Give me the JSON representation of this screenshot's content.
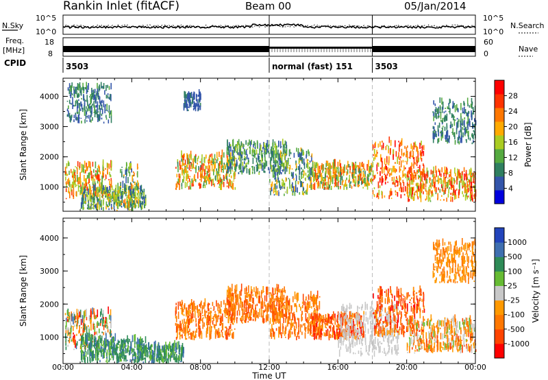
{
  "header": {
    "station": "Rankin Inlet (fitACF)",
    "beam": "Beam 00",
    "date": "05/Jan/2014"
  },
  "summary": {
    "nsky_label": "N.Sky",
    "nsky_ticks": [
      "10^5",
      "10^0"
    ],
    "nsearch_label": "N.Search",
    "freq_label_line1": "Freq.",
    "freq_label_line2": "[MHz]",
    "freq_ticks": [
      "18",
      "8"
    ],
    "nave_label": "Nave",
    "nave_ticks": [
      "60",
      "0"
    ],
    "cpid_label": "CPID",
    "cpid_segments": [
      {
        "text": "3503",
        "start_hour": 0,
        "end_hour": 12
      },
      {
        "text": "normal (fast) 151",
        "start_hour": 12,
        "end_hour": 18
      },
      {
        "text": "3503",
        "start_hour": 18,
        "end_hour": 24
      }
    ]
  },
  "colors": {
    "power_scale": [
      "#0000dd",
      "#3355aa",
      "#2f7f60",
      "#55aa40",
      "#aacc22",
      "#ffaa00",
      "#ff7700",
      "#ff3300",
      "#ff0000"
    ],
    "velocity_scale": [
      "#ff0000",
      "#ff4400",
      "#ff7700",
      "#ff9900",
      "#c8c8c8",
      "#66bb33",
      "#2e8b57",
      "#3f6fb0",
      "#2244bb"
    ],
    "ground_scatter": "#c8c8c8",
    "marker_line": "#bbbbbb"
  },
  "chart_data": [
    {
      "type": "heatmap",
      "name": "power",
      "ylabel": "Slant Range [km]",
      "xlabel": "Time UT",
      "x_ticks": [
        "00:00",
        "04:00",
        "08:00",
        "12:00",
        "16:00",
        "20:00",
        "00:00"
      ],
      "x_range_hours": [
        0,
        24
      ],
      "y_range": [
        200,
        4600
      ],
      "y_ticks": [
        1000,
        2000,
        3000,
        4000
      ],
      "vertical_markers_hours": [
        12,
        18
      ],
      "colorbar": {
        "label": "Power [dB]",
        "ticks": [
          4,
          8,
          12,
          16,
          20,
          24,
          28
        ]
      },
      "regions": [
        {
          "t0": 0.1,
          "t1": 2.8,
          "r0": 600,
          "r1": 1700,
          "v0": 12,
          "v1": 28
        },
        {
          "t0": 1.0,
          "t1": 4.8,
          "r0": 200,
          "r1": 900,
          "v0": 4,
          "v1": 20
        },
        {
          "t0": 3.3,
          "t1": 4.4,
          "r0": 300,
          "r1": 1700,
          "v0": 4,
          "v1": 24
        },
        {
          "t0": 6.5,
          "t1": 10.0,
          "r0": 900,
          "r1": 2000,
          "v0": 8,
          "v1": 28
        },
        {
          "t0": 9.5,
          "t1": 13.0,
          "r0": 1400,
          "r1": 2400,
          "v0": 4,
          "v1": 16
        },
        {
          "t0": 12.0,
          "t1": 14.5,
          "r0": 700,
          "r1": 2200,
          "v0": 4,
          "v1": 20
        },
        {
          "t0": 14.5,
          "t1": 18.0,
          "r0": 900,
          "r1": 1700,
          "v0": 8,
          "v1": 28
        },
        {
          "t0": 18.0,
          "t1": 21.0,
          "r0": 600,
          "r1": 2500,
          "v0": 16,
          "v1": 30
        },
        {
          "t0": 20.0,
          "t1": 24.0,
          "r0": 500,
          "r1": 1500,
          "v0": 12,
          "v1": 30
        },
        {
          "t0": 21.5,
          "t1": 24.0,
          "r0": 2400,
          "r1": 3800,
          "v0": 4,
          "v1": 12
        },
        {
          "t0": 0.2,
          "t1": 2.8,
          "r0": 3100,
          "r1": 4300,
          "v0": 4,
          "v1": 12
        },
        {
          "t0": 7.0,
          "t1": 8.0,
          "r0": 3500,
          "r1": 4000,
          "v0": 4,
          "v1": 8
        }
      ]
    },
    {
      "type": "heatmap",
      "name": "velocity",
      "ylabel": "Slant Range [km]",
      "xlabel": "Time UT",
      "x_ticks": [
        "00:00",
        "04:00",
        "08:00",
        "12:00",
        "16:00",
        "20:00",
        "00:00"
      ],
      "x_range_hours": [
        0,
        24
      ],
      "y_range": [
        200,
        4600
      ],
      "y_ticks": [
        1000,
        2000,
        3000,
        4000
      ],
      "vertical_markers_hours": [
        12,
        18
      ],
      "colorbar": {
        "label": "Velocity [m s⁻¹]",
        "ticks": [
          "1000",
          "500",
          "100",
          "25",
          "-25",
          "-100",
          "-500",
          "-1000"
        ]
      },
      "regions": [
        {
          "t0": 0.1,
          "t1": 2.8,
          "r0": 600,
          "r1": 1700,
          "c0": 0,
          "c1": 7
        },
        {
          "t0": 1.0,
          "t1": 4.8,
          "r0": 200,
          "r1": 900,
          "c0": 5,
          "c1": 7
        },
        {
          "t0": 4.5,
          "t1": 7.0,
          "r0": 200,
          "r1": 700,
          "c0": 5,
          "c1": 7
        },
        {
          "t0": 6.5,
          "t1": 10.0,
          "r0": 900,
          "r1": 2000,
          "c0": 1,
          "c1": 3
        },
        {
          "t0": 9.5,
          "t1": 13.0,
          "r0": 1400,
          "r1": 2400,
          "c0": 1,
          "c1": 3
        },
        {
          "t0": 12.0,
          "t1": 15.0,
          "r0": 900,
          "r1": 2200,
          "c0": 1,
          "c1": 3
        },
        {
          "t0": 14.5,
          "t1": 17.5,
          "r0": 900,
          "r1": 1600,
          "c0": 0,
          "c1": 3
        },
        {
          "t0": 16.0,
          "t1": 19.5,
          "r0": 400,
          "r1": 1900,
          "c0": 4,
          "c1": 4
        },
        {
          "t0": 18.0,
          "t1": 21.0,
          "r0": 1000,
          "r1": 2400,
          "c0": 0,
          "c1": 3
        },
        {
          "t0": 20.0,
          "t1": 24.0,
          "r0": 500,
          "r1": 1500,
          "c0": 1,
          "c1": 5
        },
        {
          "t0": 21.5,
          "t1": 24.0,
          "r0": 2600,
          "r1": 3800,
          "c0": 2,
          "c1": 3
        }
      ]
    }
  ]
}
